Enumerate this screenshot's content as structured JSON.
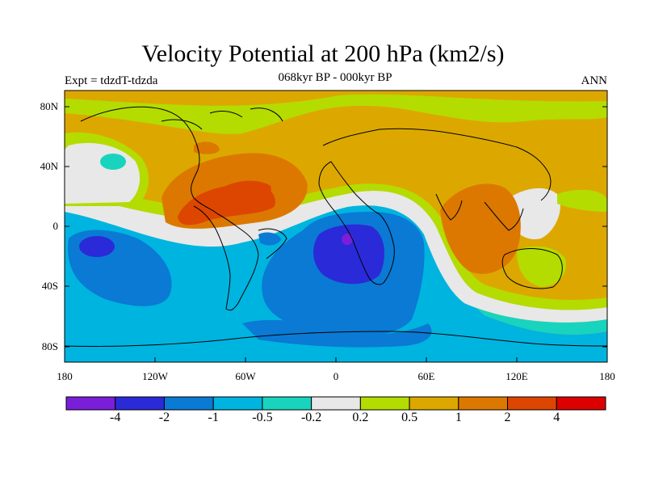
{
  "title": "Velocity Potential at 200 hPa (km2/s)",
  "subtitle_left": "Expt = tdzdT-tdzda",
  "subtitle_center": "068kyr BP - 000kyr BP",
  "subtitle_right": "ANN",
  "lat_labels": [
    "80N",
    "40N",
    "0",
    "40S",
    "80S"
  ],
  "lon_labels": [
    "180",
    "120W",
    "60W",
    "0",
    "60E",
    "120E",
    "180"
  ],
  "colorbar": {
    "colors": [
      "#7a1fd8",
      "#2a2ad8",
      "#0a7ad4",
      "#00b4e0",
      "#18d4be",
      "#e8e8e8",
      "#b4dc00",
      "#dca800",
      "#dc7800",
      "#dc4600",
      "#dc0000"
    ],
    "labels": [
      "-4",
      "-2",
      "-1",
      "-0.5",
      "-0.2",
      "0.2",
      "0.5",
      "1",
      "2",
      "4"
    ]
  },
  "colors": {
    "orange": "#dca800",
    "dark_orange": "#dc7800",
    "red_orange": "#dc4600",
    "lime": "#b4dc00",
    "gray": "#e8e8e8",
    "teal": "#18d4be",
    "cyan": "#00b4e0",
    "blue": "#0a7ad4",
    "deep_blue": "#2a2ad8",
    "purple": "#7a1fd8"
  }
}
